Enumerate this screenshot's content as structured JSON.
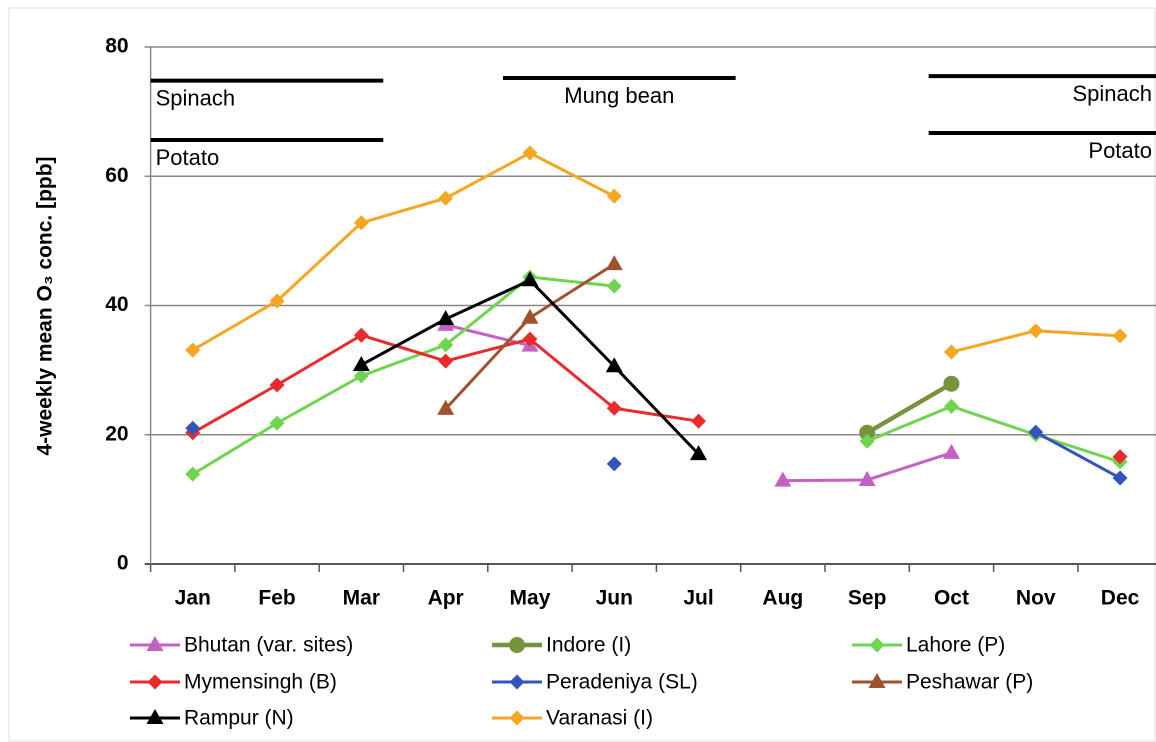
{
  "chart_data": {
    "type": "line",
    "ylabel": "4-weekly mean O₃ conc. [ppb]",
    "categories": [
      "Jan",
      "Feb",
      "Mar",
      "Apr",
      "May",
      "Jun",
      "Jul",
      "Aug",
      "Sep",
      "Oct",
      "Nov",
      "Dec"
    ],
    "ylim": [
      0,
      80
    ],
    "yticks": [
      0,
      20,
      40,
      60,
      80
    ],
    "grid": true,
    "series": [
      {
        "name": "Bhutan (var. sites)",
        "color": "#c462c4",
        "marker": "triangle",
        "values": [
          null,
          null,
          null,
          37,
          33.8,
          null,
          null,
          12.9,
          13,
          17.2,
          null,
          null
        ]
      },
      {
        "name": "Indore (I)",
        "color": "#77933c",
        "marker": "circle",
        "values": [
          null,
          null,
          null,
          null,
          null,
          null,
          null,
          null,
          20.3,
          27.9,
          null,
          null
        ]
      },
      {
        "name": "Lahore (P)",
        "color": "#6fd44f",
        "marker": "diamond",
        "values": [
          13.9,
          21.8,
          29.1,
          33.9,
          44.4,
          43,
          null,
          null,
          19,
          24.4,
          20,
          15.8
        ]
      },
      {
        "name": "Mymensingh (B)",
        "color": "#e82c2c",
        "marker": "diamond",
        "values": [
          20.3,
          27.7,
          35.4,
          31.4,
          34.8,
          24.1,
          22.1,
          null,
          null,
          null,
          null,
          16.6
        ]
      },
      {
        "name": "Peradeniya (SL)",
        "color": "#3355bb",
        "marker": "diamond",
        "values": [
          21,
          null,
          null,
          null,
          null,
          15.5,
          null,
          null,
          null,
          null,
          20.4,
          13.3
        ]
      },
      {
        "name": "Peshawar (P)",
        "color": "#a0522d",
        "marker": "triangle",
        "values": [
          null,
          null,
          null,
          24,
          38.1,
          46.4,
          null,
          null,
          null,
          null,
          null,
          null
        ]
      },
      {
        "name": "Rampur (N)",
        "color": "#000000",
        "marker": "triangle",
        "values": [
          null,
          null,
          30.8,
          37.9,
          43.9,
          30.6,
          17,
          null,
          null,
          null,
          null,
          null
        ]
      },
      {
        "name": "Varanasi (I)",
        "color": "#f5a623",
        "marker": "diamond",
        "values": [
          33.1,
          40.7,
          52.8,
          56.6,
          63.6,
          56.9,
          null,
          null,
          null,
          32.8,
          36.1,
          35.3
        ]
      }
    ],
    "crop_periods": [
      {
        "label": "Spinach",
        "y": 74.8,
        "start": 0,
        "end": 2.76
      },
      {
        "label": "Potato",
        "y": 65.6,
        "start": 0,
        "end": 2.76
      },
      {
        "label": "Mung bean",
        "y": 75.2,
        "start": 4.18,
        "end": 6.94
      },
      {
        "label": "Spinach",
        "y": 75.5,
        "start": 9.23,
        "end": 12
      },
      {
        "label": "Potato",
        "y": 66.7,
        "start": 9.23,
        "end": 12
      }
    ]
  }
}
